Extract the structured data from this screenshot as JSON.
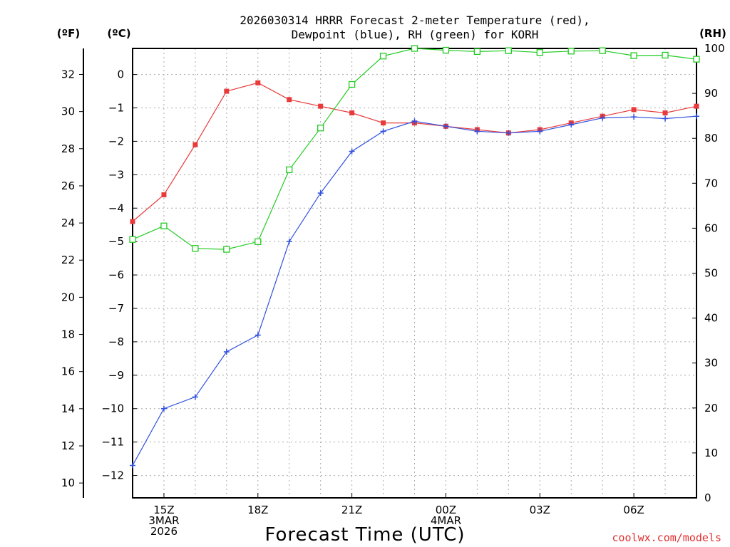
{
  "chart_data": {
    "type": "line",
    "title_line1": "2026030314 HRRR Forecast 2-meter Temperature (red),",
    "title_line2": "Dewpoint (blue), RH (green) for KORH",
    "left_axis_f_label": "(ºF)",
    "left_axis_c_label": "(ºC)",
    "right_axis_label": "(RH)",
    "xlabel": "Forecast Time (UTC)",
    "credit": "coolwx.com/models",
    "x_ticks": [
      {
        "x": 1,
        "lines": [
          "15Z",
          "3MAR",
          "2026"
        ]
      },
      {
        "x": 4,
        "lines": [
          "18Z"
        ]
      },
      {
        "x": 7,
        "lines": [
          "21Z"
        ]
      },
      {
        "x": 10,
        "lines": [
          "00Z",
          "4MAR"
        ]
      },
      {
        "x": 13,
        "lines": [
          "03Z"
        ]
      },
      {
        "x": 16,
        "lines": [
          "06Z"
        ]
      }
    ],
    "xlim": [
      0,
      18
    ],
    "ylim_c": [
      -12.67,
      0.78
    ],
    "ylim_f": [
      9.2,
      33.4
    ],
    "ylim_rh": [
      0,
      100
    ],
    "y_ticks_c": [
      0,
      -1,
      -2,
      -3,
      -4,
      -5,
      -6,
      -7,
      -8,
      -9,
      -10,
      -11,
      -12
    ],
    "y_ticks_f": [
      32,
      30,
      28,
      26,
      24,
      22,
      20,
      18,
      16,
      14,
      12,
      10
    ],
    "y_ticks_rh": [
      100,
      90,
      80,
      70,
      60,
      50,
      40,
      30,
      20,
      10,
      0
    ],
    "hours": [
      "14Z",
      "15Z",
      "16Z",
      "17Z",
      "18Z",
      "19Z",
      "20Z",
      "21Z",
      "22Z",
      "23Z",
      "00Z",
      "01Z",
      "02Z",
      "03Z",
      "04Z",
      "05Z",
      "06Z",
      "07Z",
      "08Z"
    ],
    "series": [
      {
        "name": "Temperature",
        "axis": "c",
        "color": "#e83a3a",
        "marker": "filled-square",
        "values": [
          -4.4,
          -3.6,
          -2.1,
          -0.5,
          -0.25,
          -0.75,
          -0.95,
          -1.15,
          -1.45,
          -1.45,
          -1.55,
          -1.65,
          -1.75,
          -1.65,
          -1.45,
          -1.25,
          -1.05,
          -1.15,
          -0.95
        ]
      },
      {
        "name": "Dewpoint",
        "axis": "c",
        "color": "#3050e0",
        "marker": "plus",
        "values": [
          -11.7,
          -10.0,
          -9.65,
          -8.3,
          -7.8,
          -5.0,
          -3.55,
          -2.3,
          -1.7,
          -1.4,
          -1.55,
          -1.7,
          -1.75,
          -1.7,
          -1.5,
          -1.3,
          -1.27,
          -1.32,
          -1.25
        ]
      },
      {
        "name": "RH",
        "axis": "rh",
        "color": "#22cc22",
        "marker": "open-square",
        "values": [
          57.5,
          60.5,
          55.5,
          55.3,
          57,
          73,
          82.3,
          92,
          98.3,
          100,
          99.6,
          99.3,
          99.5,
          99.1,
          99.4,
          99.5,
          98.4,
          98.5,
          97.6
        ]
      }
    ]
  }
}
